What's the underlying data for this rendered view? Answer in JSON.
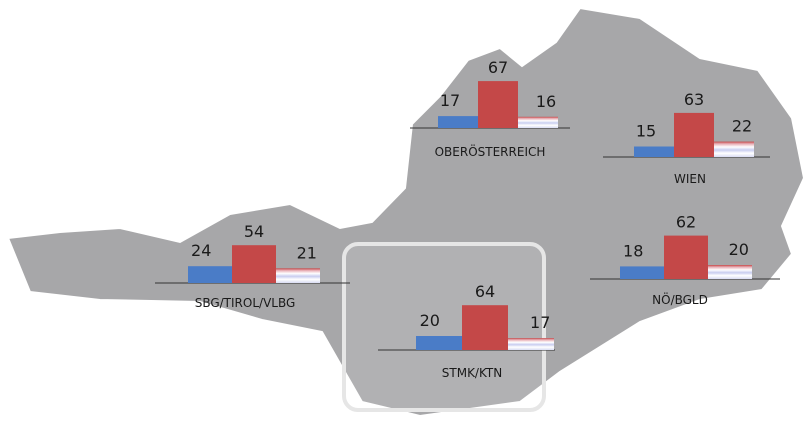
{
  "colors": [
    "#4a7cc7",
    "#c44848",
    "#d9dcf3"
  ],
  "regions": [
    {
      "label": "OBERÖSTERREICH",
      "values": [
        17,
        67,
        16
      ]
    },
    {
      "label": "WIEN",
      "values": [
        15,
        63,
        22
      ]
    },
    {
      "label": "SBG/TIROL/VLBG",
      "values": [
        24,
        54,
        21
      ]
    },
    {
      "label": "NÖ/BGLD",
      "values": [
        18,
        62,
        20
      ]
    },
    {
      "label": "STMK/KTN",
      "values": [
        20,
        64,
        17
      ]
    }
  ]
}
